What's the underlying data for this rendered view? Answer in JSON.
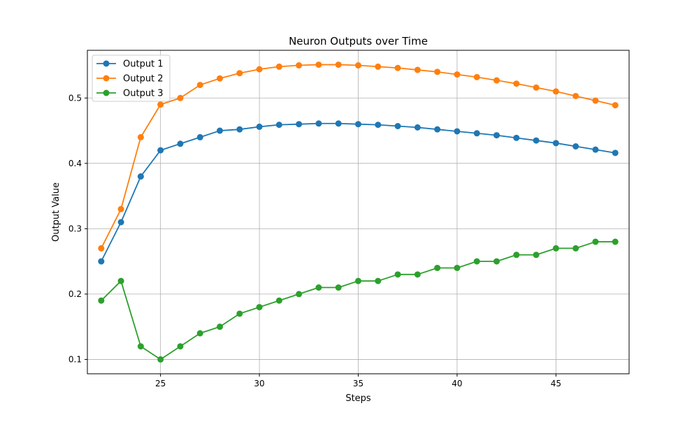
{
  "chart_data": {
    "type": "line",
    "title": "Neuron Outputs over Time",
    "xlabel": "Steps",
    "ylabel": "Output Value",
    "xlim": [
      21.3,
      48.7
    ],
    "ylim": [
      0.078,
      0.573
    ],
    "x_ticks": [
      25,
      30,
      35,
      40,
      45
    ],
    "y_ticks": [
      0.1,
      0.2,
      0.3,
      0.4,
      0.5
    ],
    "x_tick_labels": [
      "25",
      "30",
      "35",
      "40",
      "45"
    ],
    "y_tick_labels": [
      "0.1",
      "0.2",
      "0.3",
      "0.4",
      "0.5"
    ],
    "grid": true,
    "legend_position": "top-left",
    "x": [
      22,
      23,
      24,
      25,
      26,
      27,
      28,
      29,
      30,
      31,
      32,
      33,
      34,
      35,
      36,
      37,
      38,
      39,
      40,
      41,
      42,
      43,
      44,
      45,
      46,
      47,
      48
    ],
    "series": [
      {
        "name": "Output 1",
        "color": "#1f77b4",
        "values": [
          0.25,
          0.31,
          0.38,
          0.42,
          0.43,
          0.44,
          0.45,
          0.452,
          0.456,
          0.459,
          0.46,
          0.461,
          0.461,
          0.46,
          0.459,
          0.457,
          0.455,
          0.452,
          0.449,
          0.446,
          0.443,
          0.439,
          0.435,
          0.431,
          0.426,
          0.421,
          0.416
        ]
      },
      {
        "name": "Output 2",
        "color": "#ff7f0e",
        "values": [
          0.27,
          0.33,
          0.44,
          0.49,
          0.5,
          0.52,
          0.53,
          0.538,
          0.544,
          0.548,
          0.55,
          0.551,
          0.551,
          0.55,
          0.548,
          0.546,
          0.543,
          0.54,
          0.536,
          0.532,
          0.527,
          0.522,
          0.516,
          0.51,
          0.503,
          0.496,
          0.489
        ]
      },
      {
        "name": "Output 3",
        "color": "#2ca02c",
        "values": [
          0.19,
          0.22,
          0.12,
          0.1,
          0.12,
          0.14,
          0.15,
          0.17,
          0.18,
          0.19,
          0.2,
          0.21,
          0.21,
          0.22,
          0.22,
          0.23,
          0.23,
          0.24,
          0.24,
          0.25,
          0.25,
          0.26,
          0.26,
          0.27,
          0.27,
          0.28,
          0.28
        ]
      }
    ]
  }
}
